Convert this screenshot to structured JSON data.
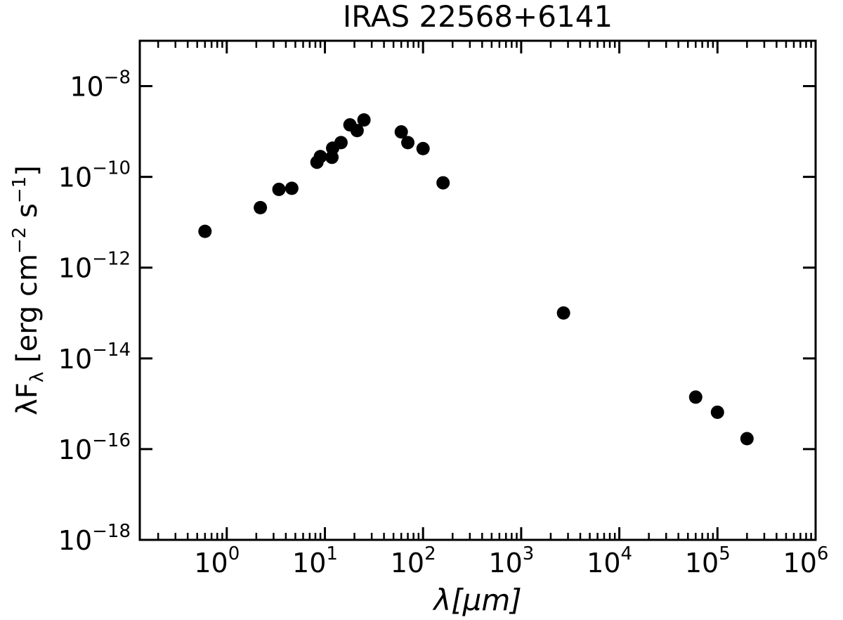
{
  "chart_data": {
    "type": "scatter",
    "title": "IRAS 22568+6141",
    "xlabel_main": "λ[",
    "xlabel_mu": "μm",
    "xlabel_end": "]",
    "ylabel_pre": "λF",
    "ylabel_sub": "λ",
    "ylabel_mid": " [erg cm",
    "ylabel_exp1": "−2",
    "ylabel_s": " s",
    "ylabel_exp2": "−1",
    "ylabel_end": "]",
    "xscale": "log",
    "yscale": "log",
    "xlim": [
      0.13,
      1000000
    ],
    "ylim": [
      1e-18,
      1e-07
    ],
    "x_ticks": [
      {
        "base": "10",
        "exp": "0",
        "value": 1
      },
      {
        "base": "10",
        "exp": "1",
        "value": 10
      },
      {
        "base": "10",
        "exp": "2",
        "value": 100
      },
      {
        "base": "10",
        "exp": "3",
        "value": 1000
      },
      {
        "base": "10",
        "exp": "4",
        "value": 10000
      },
      {
        "base": "10",
        "exp": "5",
        "value": 100000
      },
      {
        "base": "10",
        "exp": "6",
        "value": 1000000
      }
    ],
    "y_ticks": [
      {
        "base": "10",
        "exp": "−18",
        "value": 1e-18
      },
      {
        "base": "10",
        "exp": "−16",
        "value": 1e-16
      },
      {
        "base": "10",
        "exp": "−14",
        "value": 1e-14
      },
      {
        "base": "10",
        "exp": "−12",
        "value": 1e-12
      },
      {
        "base": "10",
        "exp": "−10",
        "value": 1e-10
      },
      {
        "base": "10",
        "exp": "−8",
        "value": 1e-08
      }
    ],
    "points": [
      {
        "x": 0.6,
        "y": 6.3e-12
      },
      {
        "x": 2.2,
        "y": 2.1e-11
      },
      {
        "x": 3.4,
        "y": 5.3e-11
      },
      {
        "x": 4.6,
        "y": 5.6e-11
      },
      {
        "x": 8.3,
        "y": 2.1e-10
      },
      {
        "x": 9.0,
        "y": 2.8e-10
      },
      {
        "x": 11.8,
        "y": 2.7e-10
      },
      {
        "x": 12.0,
        "y": 4.3e-10
      },
      {
        "x": 14.6,
        "y": 5.7e-10
      },
      {
        "x": 18.0,
        "y": 1.4e-09
      },
      {
        "x": 21.3,
        "y": 1.05e-09
      },
      {
        "x": 25.0,
        "y": 1.8e-09
      },
      {
        "x": 60.0,
        "y": 9.8e-10
      },
      {
        "x": 70.0,
        "y": 5.7e-10
      },
      {
        "x": 100.0,
        "y": 4.2e-10
      },
      {
        "x": 160.0,
        "y": 7.4e-11
      },
      {
        "x": 2700.0,
        "y": 1e-13
      },
      {
        "x": 60000.0,
        "y": 1.4e-15
      },
      {
        "x": 100000.0,
        "y": 6.5e-16
      },
      {
        "x": 200000.0,
        "y": 1.7e-16
      }
    ],
    "marker_color": "#000000",
    "grid": false,
    "legend": "none"
  }
}
